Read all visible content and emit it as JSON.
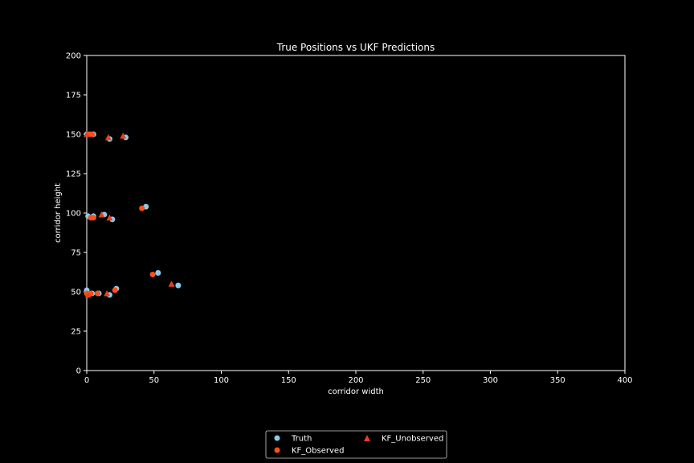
{
  "chart_data": {
    "type": "scatter",
    "title": "True Positions vs UKF Predictions",
    "xlabel": "corridor width",
    "ylabel": "corridor height",
    "xlim": [
      0,
      400
    ],
    "ylim": [
      0,
      200
    ],
    "xticks": [
      "0",
      "50",
      "100",
      "150",
      "200",
      "250",
      "300",
      "350",
      "400"
    ],
    "yticks": [
      "0",
      "25",
      "50",
      "75",
      "100",
      "125",
      "150",
      "175",
      "200"
    ],
    "grid": false,
    "legend_placement": "bottom-center, below plot",
    "series": [
      {
        "name": "Truth",
        "marker": "circle",
        "color": "#87ceeb",
        "x": [
          0,
          5,
          17,
          29,
          1,
          5,
          13,
          19,
          44,
          0,
          4,
          9,
          17,
          22,
          53,
          68
        ],
        "y": [
          150,
          150,
          147,
          148,
          98,
          98,
          99,
          96,
          104,
          51,
          49,
          49,
          48,
          52,
          62,
          54
        ]
      },
      {
        "name": "KF_Observed",
        "marker": "circle",
        "color": "#fc4f1a",
        "x": [
          2,
          4,
          3,
          5,
          41,
          0,
          3,
          8,
          21,
          49
        ],
        "y": [
          150,
          150,
          97,
          97,
          103,
          49,
          49,
          49,
          51,
          61
        ]
      },
      {
        "name": "KF_Unobserved",
        "marker": "triangle",
        "color": "#e8401c",
        "x": [
          0,
          16,
          27,
          11,
          17,
          1,
          15,
          63
        ],
        "y": [
          150,
          148,
          149,
          99,
          97,
          48,
          49,
          55
        ]
      }
    ]
  }
}
